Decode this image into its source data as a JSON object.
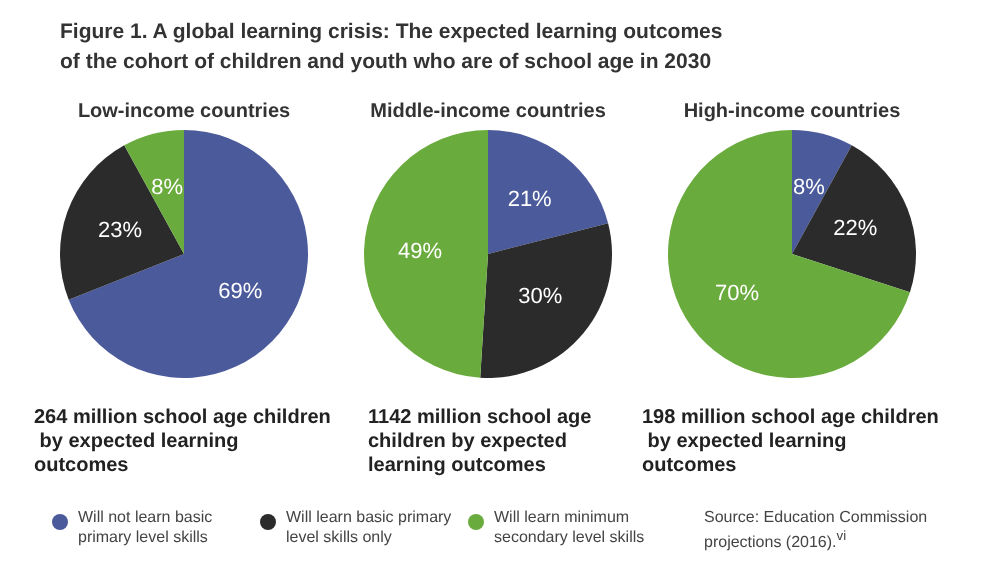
{
  "chart_data": [
    {
      "type": "pie",
      "title": "Figure 1. A global learning crisis: The expected learning outcomes of the cohort of children and youth who are of school age in 2030",
      "subtitle": "Low-income countries",
      "categories": [
        "Will not learn basic primary level skills",
        "Will learn basic primary level skills only",
        "Will learn minimum secondary level skills"
      ],
      "values": [
        69,
        23,
        8
      ],
      "value_labels": [
        "69%",
        "23%",
        "8%"
      ],
      "colors": [
        "#4b5a9b",
        "#2b2b2b",
        "#6aab3d"
      ],
      "annotations": [
        "264 million school age children by expected learning outcomes"
      ],
      "legend": "bottom"
    },
    {
      "type": "pie",
      "subtitle": "Middle-income countries",
      "categories": [
        null,
        null,
        null
      ],
      "values": [
        21,
        30,
        49
      ],
      "value_labels": [
        "21%",
        "30%",
        "49%"
      ],
      "colors": [
        "#4b5a9b",
        "#2b2b2b",
        "#6aab3d"
      ],
      "annotations": [
        "1142 million school age children by expected learning outcomes"
      ]
    },
    {
      "type": "pie",
      "subtitle": "High-income countries",
      "categories": [
        null,
        null,
        null
      ],
      "values": [
        8,
        22,
        70
      ],
      "value_labels": [
        "8%",
        "22%",
        "70%"
      ],
      "colors": [
        "#4b5a9b",
        "#2b2b2b",
        "#6aab3d"
      ],
      "annotations": [
        "198 million school age children by expected learning outcomes",
        "Source: Education Commission projections (2016).$^{vi}$"
      ]
    }
  ]
}
